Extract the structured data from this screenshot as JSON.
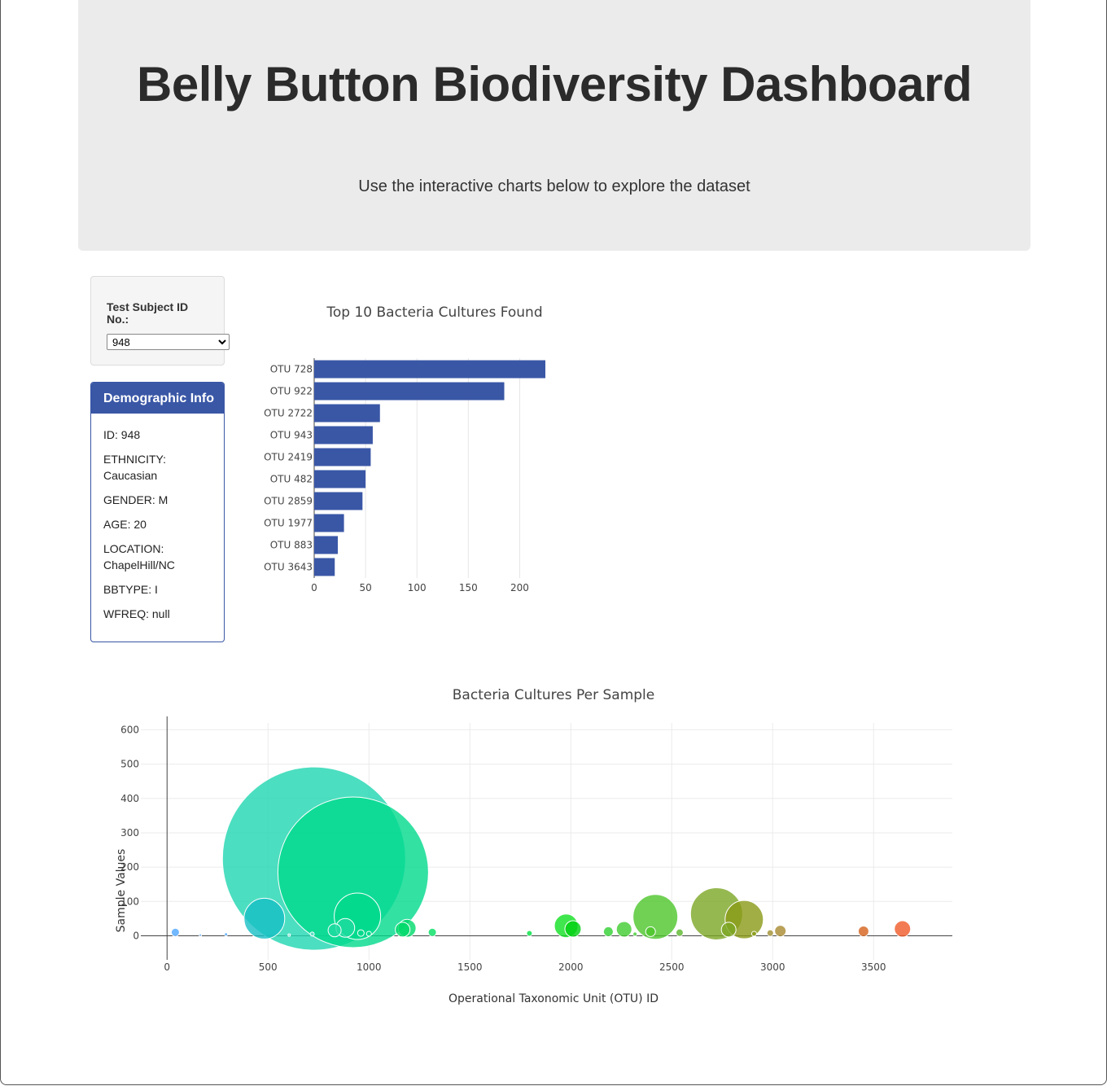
{
  "header": {
    "title": "Belly Button Biodiversity Dashboard",
    "subtitle": "Use the interactive charts below to explore the dataset"
  },
  "selector": {
    "label": "Test Subject ID No.:",
    "selected": "948"
  },
  "demographics": {
    "heading": "Demographic Info",
    "rows": [
      "ID: 948",
      "ETHNICITY: Caucasian",
      "GENDER: M",
      "AGE: 20",
      "LOCATION: ChapelHill/NC",
      "BBTYPE: I",
      "WFREQ: null"
    ]
  },
  "colors": {
    "accent": "#3a57a6",
    "bar": "#3a57a6"
  },
  "chart_data": [
    {
      "type": "bar",
      "orientation": "horizontal",
      "title": "Top 10 Bacteria Cultures Found",
      "categories": [
        "OTU 728",
        "OTU 922",
        "OTU 2722",
        "OTU 943",
        "OTU 2419",
        "OTU 482",
        "OTU 2859",
        "OTU 1977",
        "OTU 883",
        "OTU 3643"
      ],
      "values": [
        225,
        185,
        64,
        57,
        55,
        50,
        47,
        29,
        23,
        20
      ],
      "xlim": [
        0,
        225
      ],
      "xticks": [
        0,
        50,
        100,
        150,
        200
      ]
    },
    {
      "type": "scatter",
      "title": "Bacteria Cultures Per Sample",
      "xlabel": "Operational Taxonomic Unit (OTU) ID",
      "ylabel": "Sample Values",
      "xlim": [
        -130,
        3890
      ],
      "ylim": [
        -70,
        620
      ],
      "xticks": [
        0,
        500,
        1000,
        1500,
        2000,
        2500,
        3000,
        3500
      ],
      "yticks": [
        0,
        100,
        200,
        300,
        400,
        500,
        600
      ],
      "points": [
        {
          "x": 41,
          "y": 10,
          "size": 10,
          "color": "#4da6ff"
        },
        {
          "x": 165,
          "y": 2,
          "size": 2,
          "color": "#4da6ff"
        },
        {
          "x": 292,
          "y": 4,
          "size": 4,
          "color": "#4da6ff"
        },
        {
          "x": 482,
          "y": 50,
          "size": 50,
          "color": "#17bfc4"
        },
        {
          "x": 605,
          "y": 2,
          "size": 2,
          "color": "#6ee0d0"
        },
        {
          "x": 719,
          "y": 5,
          "size": 5,
          "color": "#6ee0d0"
        },
        {
          "x": 728,
          "y": 225,
          "size": 225,
          "color": "#1fd6b0"
        },
        {
          "x": 830,
          "y": 16,
          "size": 16,
          "color": "#1fdba0"
        },
        {
          "x": 883,
          "y": 23,
          "size": 23,
          "color": "#1fdba0"
        },
        {
          "x": 922,
          "y": 185,
          "size": 185,
          "color": "#00d98c"
        },
        {
          "x": 943,
          "y": 57,
          "size": 57,
          "color": "#00d98c"
        },
        {
          "x": 960,
          "y": 8,
          "size": 8,
          "color": "#00d98c"
        },
        {
          "x": 1000,
          "y": 6,
          "size": 6,
          "color": "#00d98c"
        },
        {
          "x": 1167,
          "y": 18,
          "size": 18,
          "color": "#00d96a"
        },
        {
          "x": 1189,
          "y": 22,
          "size": 22,
          "color": "#00d96a"
        },
        {
          "x": 1314,
          "y": 10,
          "size": 10,
          "color": "#00e060"
        },
        {
          "x": 1795,
          "y": 7,
          "size": 7,
          "color": "#00e040"
        },
        {
          "x": 1977,
          "y": 29,
          "size": 29,
          "color": "#10e020"
        },
        {
          "x": 2011,
          "y": 20,
          "size": 20,
          "color": "#00d010"
        },
        {
          "x": 2186,
          "y": 12,
          "size": 12,
          "color": "#30d030"
        },
        {
          "x": 2264,
          "y": 19,
          "size": 19,
          "color": "#40cc30"
        },
        {
          "x": 2318,
          "y": 5,
          "size": 5,
          "color": "#40cc30"
        },
        {
          "x": 2419,
          "y": 55,
          "size": 55,
          "color": "#4cc52a"
        },
        {
          "x": 2395,
          "y": 12,
          "size": 12,
          "color": "#4cc52a"
        },
        {
          "x": 2539,
          "y": 9,
          "size": 9,
          "color": "#5ab52a"
        },
        {
          "x": 2722,
          "y": 64,
          "size": 64,
          "color": "#7ca625"
        },
        {
          "x": 2782,
          "y": 18,
          "size": 18,
          "color": "#7ca625"
        },
        {
          "x": 2859,
          "y": 47,
          "size": 47,
          "color": "#8a9a16"
        },
        {
          "x": 2908,
          "y": 6,
          "size": 6,
          "color": "#8a9a16"
        },
        {
          "x": 2988,
          "y": 8,
          "size": 8,
          "color": "#a08f30"
        },
        {
          "x": 3038,
          "y": 14,
          "size": 14,
          "color": "#a88a30"
        },
        {
          "x": 3450,
          "y": 13,
          "size": 13,
          "color": "#d4621c"
        },
        {
          "x": 3643,
          "y": 20,
          "size": 20,
          "color": "#f05a28"
        }
      ]
    }
  ]
}
